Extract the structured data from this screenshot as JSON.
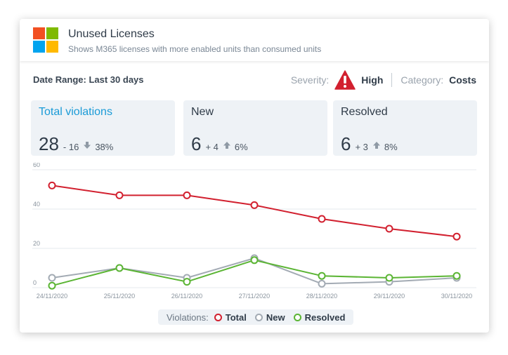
{
  "header": {
    "title": "Unused Licenses",
    "subtitle": "Shows M365 licenses with more enabled units than consumed units",
    "logo_colors": [
      "#f25022",
      "#7fba00",
      "#00a4ef",
      "#ffb900"
    ],
    "logo_icon": "microsoft-logo"
  },
  "filters": {
    "date_range": "Date Range: Last 30 days",
    "severity_label": "Severity:",
    "severity_value": "High",
    "severity_icon": "warning-triangle-icon",
    "severity_color": "#d2202f",
    "category_label": "Category:",
    "category_value": "Costs"
  },
  "stats": [
    {
      "title": "Total violations",
      "value": "28",
      "delta": "- 16",
      "trend": "down",
      "percent": "38%",
      "accent": true
    },
    {
      "title": "New",
      "value": "6",
      "delta": "+ 4",
      "trend": "up",
      "percent": "6%",
      "accent": false
    },
    {
      "title": "Resolved",
      "value": "6",
      "delta": "+ 3",
      "trend": "up",
      "percent": "8%",
      "accent": false
    }
  ],
  "legend": {
    "title": "Violations:",
    "items": [
      {
        "label": "Total",
        "color": "#d2202f"
      },
      {
        "label": "New",
        "color": "#a3abb4"
      },
      {
        "label": "Resolved",
        "color": "#5bb534"
      }
    ]
  },
  "chart_data": {
    "type": "line",
    "title": "",
    "xlabel": "",
    "ylabel": "",
    "x": [
      "24/11/2020",
      "25/11/2020",
      "26/11/2020",
      "27/11/2020",
      "28/11/2020",
      "29/11/2020",
      "30/11/2020"
    ],
    "ylim": [
      0,
      60
    ],
    "yticks": [
      0,
      20,
      40,
      60
    ],
    "grid": "horizontal",
    "legend_position": "bottom",
    "series": [
      {
        "name": "Total",
        "color": "#d2202f",
        "values": [
          52,
          47,
          47,
          42,
          35,
          30,
          26
        ]
      },
      {
        "name": "New",
        "color": "#a3abb4",
        "values": [
          5,
          10,
          5,
          15,
          2,
          3,
          5
        ]
      },
      {
        "name": "Resolved",
        "color": "#5bb534",
        "values": [
          1,
          10,
          3,
          14,
          6,
          5,
          6
        ]
      }
    ]
  }
}
